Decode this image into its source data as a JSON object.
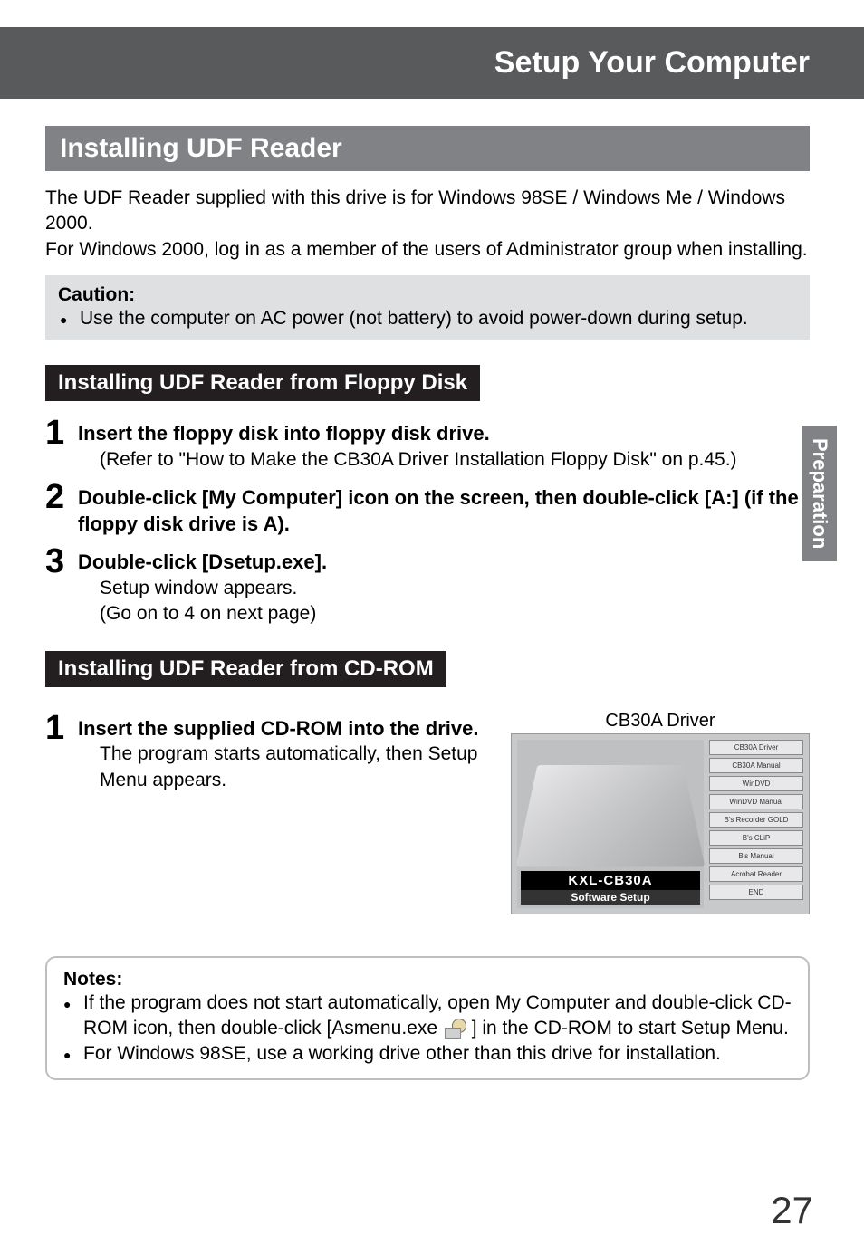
{
  "header": {
    "title": "Setup Your Computer"
  },
  "sideTab": {
    "label": "Preparation"
  },
  "pageNumber": "27",
  "section": {
    "title": "Installing UDF Reader"
  },
  "intro": "The UDF Reader supplied with this drive is for Windows 98SE / Windows Me / Windows 2000.\nFor Windows 2000, log in as a member of the users of Administrator group when installing.",
  "introLine1": "The UDF Reader supplied with this drive is for Windows 98SE / Windows Me / Windows 2000.",
  "introLine2": "For Windows 2000, log in as a member of the users of Administrator group when installing.",
  "caution": {
    "title": "Caution:",
    "body": "Use the computer on AC power (not battery) to avoid power-down during setup."
  },
  "floppy": {
    "title": "Installing UDF Reader from Floppy Disk",
    "steps": [
      {
        "num": "1",
        "bold": "Insert the floppy disk into floppy disk drive.",
        "para": "(Refer to \"How to Make the CB30A Driver Installation Floppy Disk\" on p.45.)"
      },
      {
        "num": "2",
        "bold": "Double-click [My Computer] icon on the screen, then double-click [A:] (if the floppy disk drive is A)."
      },
      {
        "num": "3",
        "bold": "Double-click [Dsetup.exe].",
        "para": "Setup window appears.",
        "para2": "(Go on to 4 on next page)"
      }
    ]
  },
  "cdrom": {
    "title": "Installing UDF Reader from CD-ROM",
    "step": {
      "num": "1",
      "bold": "Insert the supplied CD-ROM into the drive.",
      "para": "The program starts automatically, then Setup Menu appears."
    },
    "driverLabel": "CB30A Driver",
    "menu": {
      "logo": "KXL-CB30A",
      "sub": "Software Setup",
      "buttons": [
        "CB30A Driver",
        "CB30A Manual",
        "WinDVD",
        "WinDVD Manual",
        "B's Recorder GOLD",
        "B's CLiP",
        "B's Manual",
        "Acrobat Reader",
        "END"
      ]
    }
  },
  "notes": {
    "title": "Notes:",
    "items": [
      "If the program does not start automatically, open My Computer and double-click CD-ROM icon, then double-click [Asmenu.exe ICON ] in the CD-ROM to start Setup Menu.",
      "For Windows 98SE, use a working drive other than this drive for installation."
    ],
    "item1a": "If the program does not start automatically, open My Computer and double-click CD-ROM icon, then double-click [Asmenu.exe ",
    "item1b": " ] in the CD-ROM to start Setup Menu.",
    "item2": "For Windows 98SE, use a working drive other than this drive for installation."
  },
  "colors": {
    "headerBg": "#595a5c",
    "sectionBg": "#808285",
    "subTitleBg": "#231f20",
    "cautionBg": "#dfe0e2",
    "notesBorder": "#bcbec0",
    "textColor": "#000000"
  }
}
